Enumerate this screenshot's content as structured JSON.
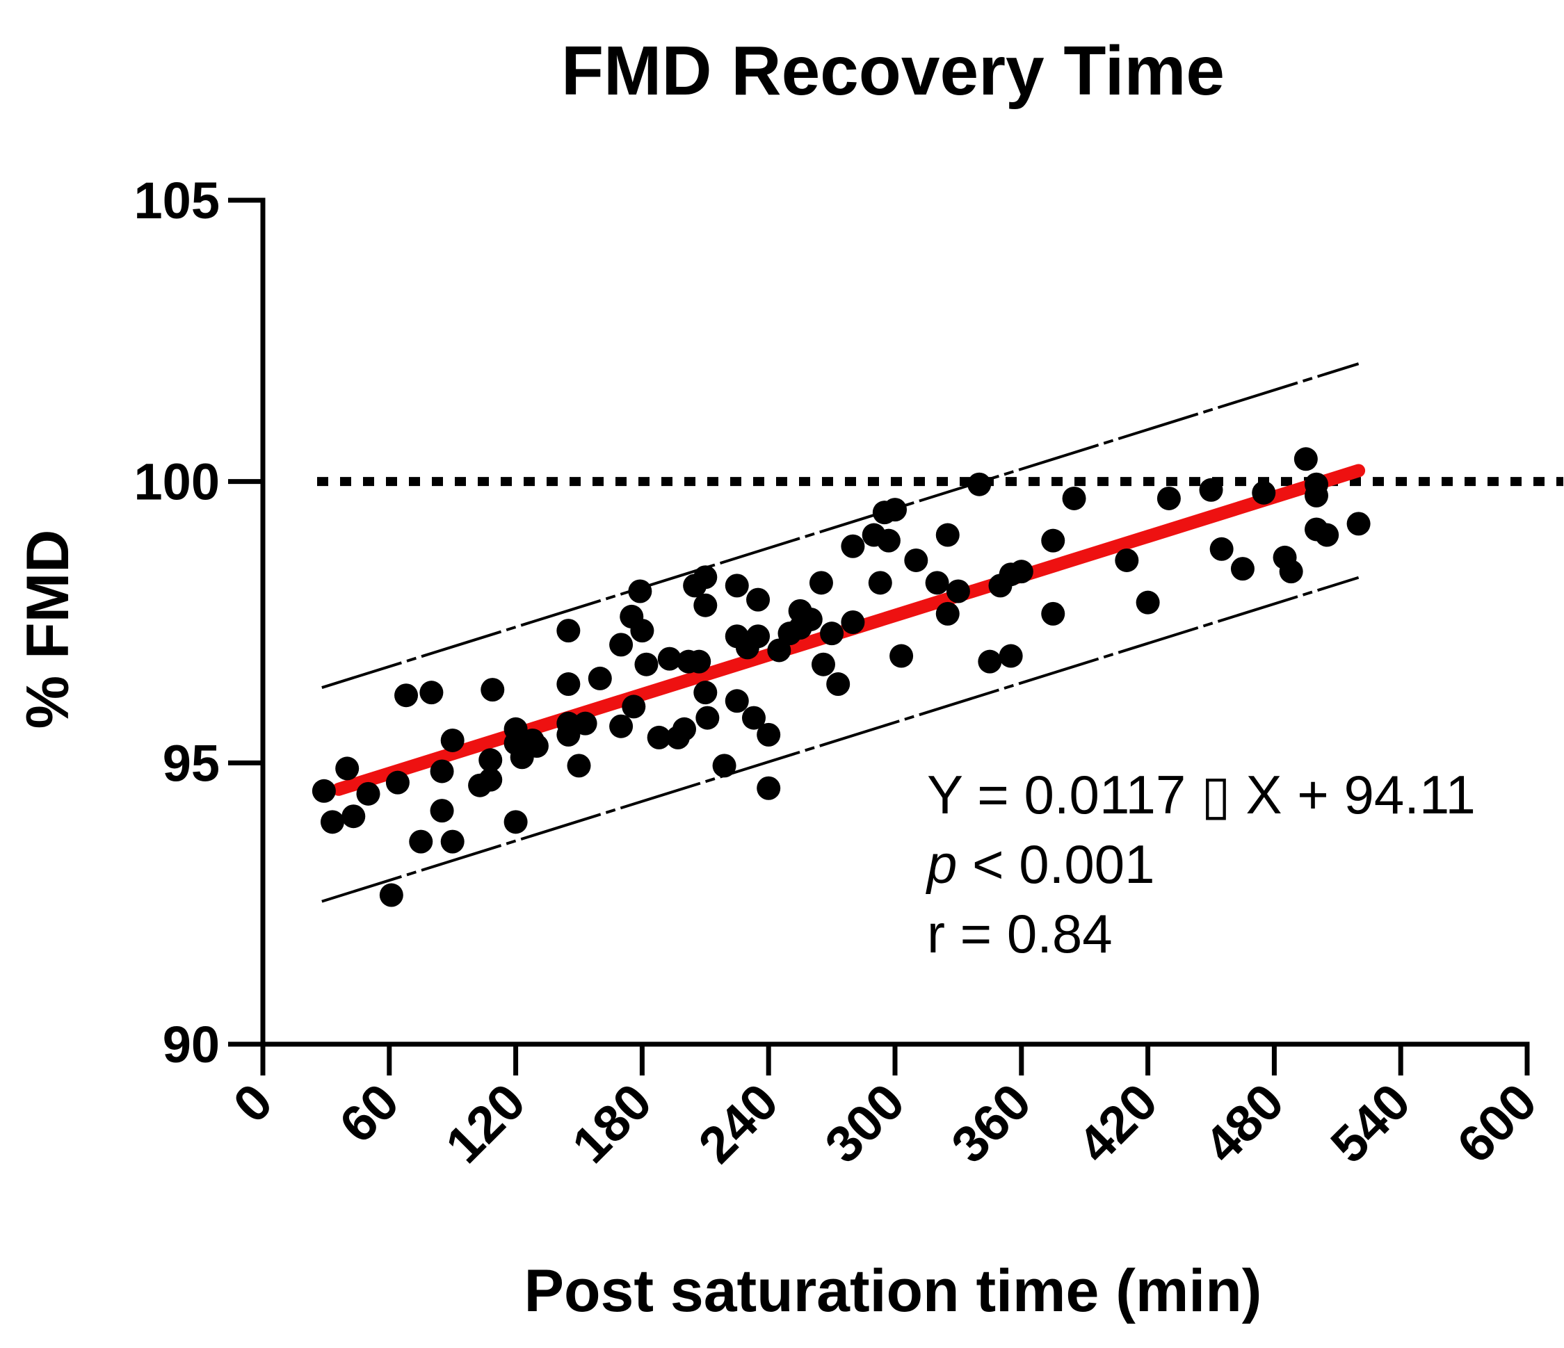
{
  "chart_data": {
    "type": "scatter",
    "title": "FMD Recovery Time",
    "xlabel": "Post saturation time (min)",
    "ylabel": "% FMD",
    "xlim": [
      0,
      600
    ],
    "ylim": [
      90,
      105
    ],
    "xticks": [
      "0",
      "60",
      "120",
      "180",
      "240",
      "300",
      "360",
      "420",
      "480",
      "540",
      "600"
    ],
    "yticks": [
      "90",
      "95",
      "100",
      "105"
    ],
    "xtick_values": [
      0,
      60,
      120,
      180,
      240,
      300,
      360,
      420,
      480,
      540,
      600
    ],
    "ytick_values": [
      90,
      95,
      100,
      105
    ],
    "reference_line": {
      "y": 100,
      "style": "dotted"
    },
    "fit": {
      "slope": 0.0117,
      "intercept": 94.11,
      "x_range": [
        36,
        520
      ],
      "color": "#ee1111"
    },
    "prediction_band": {
      "offset": 1.9,
      "x_range": [
        28,
        520
      ],
      "style": "dashed"
    },
    "annotation": {
      "equation": "Y = 0.0117 ▯ X + 94.11",
      "p_symbol": "p",
      "p_rest": " < 0.001",
      "r": "r = 0.84"
    },
    "points": [
      [
        29,
        94.5
      ],
      [
        33,
        93.95
      ],
      [
        40,
        94.9
      ],
      [
        43,
        94.05
      ],
      [
        50,
        94.45
      ],
      [
        64,
        94.65
      ],
      [
        61,
        92.65
      ],
      [
        68,
        96.2
      ],
      [
        80,
        96.25
      ],
      [
        75,
        93.6
      ],
      [
        85,
        94.85
      ],
      [
        85,
        94.15
      ],
      [
        90,
        95.4
      ],
      [
        90,
        93.6
      ],
      [
        103,
        94.6
      ],
      [
        108,
        95.05
      ],
      [
        108,
        94.7
      ],
      [
        109,
        96.3
      ],
      [
        120,
        95.6
      ],
      [
        120,
        95.35
      ],
      [
        120,
        93.95
      ],
      [
        123,
        95.1
      ],
      [
        128,
        95.4
      ],
      [
        130,
        95.3
      ],
      [
        145,
        97.35
      ],
      [
        145,
        96.4
      ],
      [
        145,
        95.7
      ],
      [
        145,
        95.5
      ],
      [
        150,
        94.95
      ],
      [
        153,
        95.7
      ],
      [
        160,
        96.5
      ],
      [
        170,
        95.65
      ],
      [
        170,
        97.1
      ],
      [
        175,
        97.6
      ],
      [
        176,
        96.0
      ],
      [
        179,
        98.05
      ],
      [
        180,
        97.35
      ],
      [
        182,
        96.75
      ],
      [
        188,
        95.45
      ],
      [
        193,
        96.85
      ],
      [
        197,
        95.45
      ],
      [
        200,
        95.6
      ],
      [
        202,
        96.8
      ],
      [
        207,
        96.8
      ],
      [
        205,
        98.15
      ],
      [
        210,
        98.3
      ],
      [
        210,
        97.8
      ],
      [
        210,
        96.25
      ],
      [
        211,
        95.8
      ],
      [
        219,
        94.95
      ],
      [
        225,
        98.15
      ],
      [
        225,
        97.25
      ],
      [
        225,
        96.1
      ],
      [
        230,
        97.05
      ],
      [
        235,
        97.25
      ],
      [
        235,
        97.9
      ],
      [
        233,
        95.8
      ],
      [
        240,
        95.5
      ],
      [
        240,
        94.55
      ],
      [
        245,
        97.0
      ],
      [
        250,
        97.3
      ],
      [
        255,
        97.4
      ],
      [
        255,
        97.7
      ],
      [
        260,
        97.55
      ],
      [
        265,
        98.2
      ],
      [
        266,
        96.75
      ],
      [
        270,
        97.3
      ],
      [
        273,
        96.4
      ],
      [
        280,
        97.5
      ],
      [
        280,
        98.85
      ],
      [
        290,
        99.05
      ],
      [
        293,
        98.2
      ],
      [
        295,
        99.45
      ],
      [
        297,
        98.95
      ],
      [
        300,
        99.5
      ],
      [
        303,
        96.9
      ],
      [
        310,
        98.6
      ],
      [
        320,
        98.2
      ],
      [
        325,
        97.65
      ],
      [
        325,
        99.05
      ],
      [
        330,
        98.05
      ],
      [
        340,
        99.95
      ],
      [
        345,
        96.8
      ],
      [
        350,
        98.15
      ],
      [
        355,
        98.35
      ],
      [
        355,
        96.9
      ],
      [
        360,
        98.4
      ],
      [
        375,
        97.65
      ],
      [
        375,
        98.95
      ],
      [
        385,
        99.7
      ],
      [
        410,
        98.6
      ],
      [
        420,
        97.85
      ],
      [
        430,
        99.7
      ],
      [
        450,
        99.85
      ],
      [
        455,
        98.8
      ],
      [
        465,
        98.45
      ],
      [
        475,
        99.8
      ],
      [
        485,
        98.65
      ],
      [
        488,
        98.4
      ],
      [
        495,
        100.4
      ],
      [
        500,
        99.95
      ],
      [
        500,
        99.75
      ],
      [
        500,
        99.15
      ],
      [
        505,
        99.05
      ],
      [
        520,
        99.25
      ]
    ]
  }
}
